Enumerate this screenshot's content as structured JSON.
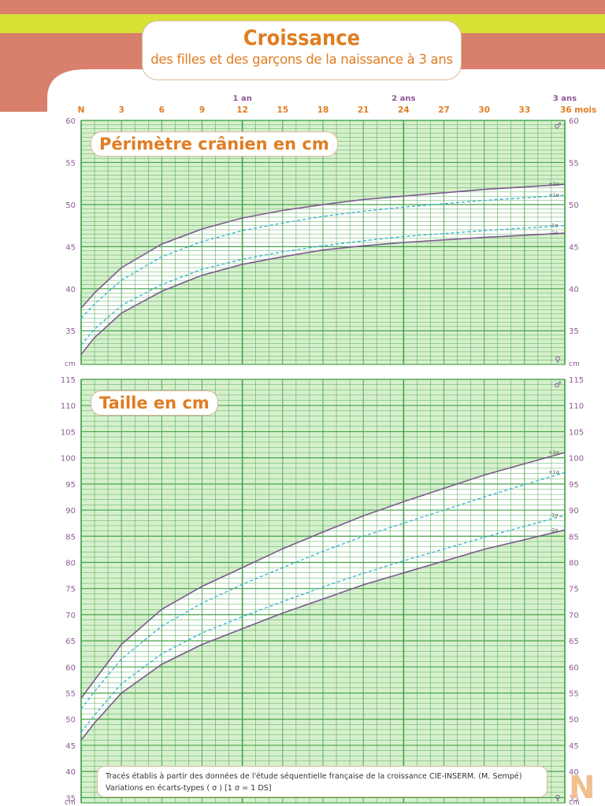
{
  "header": {
    "title": "Croissance",
    "subtitle": "des filles et des garçons de la naissance à 3 ans"
  },
  "colors": {
    "band_top": "#d8806c",
    "band_yellow": "#d7e235",
    "grid_fill": "#d6f0cd",
    "grid_line": "#46a24a",
    "boys_line": "#7b5a8c",
    "girls_line": "#2fb3cf",
    "tick_month": "#e07d22",
    "tick_value": "#8e5a96",
    "label_orange": "#e07d22"
  },
  "age_axis": {
    "month_labels": [
      "N",
      "3",
      "6",
      "9",
      "12",
      "15",
      "18",
      "21",
      "24",
      "27",
      "30",
      "33",
      "36 mois"
    ],
    "year_labels": [
      {
        "month": 12,
        "label": "1 an"
      },
      {
        "month": 24,
        "label": "2 ans"
      },
      {
        "month": 36,
        "label": "3 ans"
      }
    ]
  },
  "symbols": {
    "male": "♂",
    "female": "♀"
  },
  "chart_data": [
    {
      "type": "line",
      "title": "Périmètre crânien en cm",
      "ylabel": "cm",
      "xlim": [
        0,
        36
      ],
      "ylim": [
        31,
        60
      ],
      "y_ticks": [
        35,
        40,
        45,
        50,
        55,
        60
      ],
      "series_labels": [
        "+2σ",
        "+1σ",
        "-1σ",
        "-2σ"
      ],
      "series": [
        {
          "key": "boys_plus2",
          "style": "solid",
          "group": "male",
          "x": [
            0,
            1,
            3,
            6,
            9,
            12,
            15,
            18,
            21,
            24,
            30,
            36
          ],
          "y": [
            37.7,
            39.5,
            42.5,
            45.3,
            47.1,
            48.4,
            49.3,
            50.0,
            50.6,
            51.0,
            51.8,
            52.4
          ]
        },
        {
          "key": "girls_plus1",
          "style": "dashed",
          "group": "female",
          "x": [
            0,
            1,
            3,
            6,
            9,
            12,
            15,
            18,
            21,
            24,
            30,
            36
          ],
          "y": [
            36.5,
            38.2,
            41.0,
            43.8,
            45.6,
            46.9,
            47.8,
            48.6,
            49.2,
            49.7,
            50.5,
            51.1
          ]
        },
        {
          "key": "girls_minus1",
          "style": "dashed",
          "group": "female",
          "x": [
            0,
            1,
            3,
            6,
            9,
            12,
            15,
            18,
            21,
            24,
            30,
            36
          ],
          "y": [
            33.3,
            35.2,
            38.0,
            40.5,
            42.3,
            43.5,
            44.4,
            45.1,
            45.7,
            46.2,
            46.9,
            47.5
          ]
        },
        {
          "key": "boys_minus2",
          "style": "solid",
          "group": "male",
          "x": [
            0,
            1,
            3,
            6,
            9,
            12,
            15,
            18,
            21,
            24,
            30,
            36
          ],
          "y": [
            32.2,
            34.2,
            37.1,
            39.7,
            41.6,
            42.9,
            43.8,
            44.6,
            45.1,
            45.5,
            46.1,
            46.6
          ]
        }
      ]
    },
    {
      "type": "line",
      "title": "Taille en cm",
      "ylabel": "cm",
      "xlim": [
        0,
        36
      ],
      "ylim": [
        34,
        115
      ],
      "y_ticks": [
        35,
        40,
        45,
        50,
        55,
        60,
        65,
        70,
        75,
        80,
        85,
        90,
        95,
        100,
        105,
        110,
        115
      ],
      "series_labels": [
        "+2σ",
        "+1σ",
        "-1σ",
        "-2σ"
      ],
      "series": [
        {
          "key": "boys_plus2",
          "style": "solid",
          "group": "male",
          "x": [
            0,
            1,
            3,
            6,
            9,
            12,
            15,
            18,
            21,
            24,
            30,
            36
          ],
          "y": [
            54.0,
            57.5,
            64.3,
            71.0,
            75.4,
            79.0,
            82.6,
            85.8,
            88.9,
            91.6,
            96.7,
            101.0
          ]
        },
        {
          "key": "girls_plus1",
          "style": "dashed",
          "group": "female",
          "x": [
            0,
            1,
            3,
            6,
            9,
            12,
            15,
            18,
            21,
            24,
            30,
            36
          ],
          "y": [
            52.0,
            55.3,
            61.5,
            67.8,
            72.2,
            75.8,
            79.0,
            82.1,
            85.0,
            87.5,
            92.5,
            97.2
          ]
        },
        {
          "key": "girls_minus1",
          "style": "dashed",
          "group": "female",
          "x": [
            0,
            1,
            3,
            6,
            9,
            12,
            15,
            18,
            21,
            24,
            30,
            36
          ],
          "y": [
            47.5,
            50.8,
            56.8,
            62.5,
            66.5,
            69.6,
            72.5,
            75.3,
            77.9,
            80.3,
            84.8,
            89.0
          ]
        },
        {
          "key": "boys_minus2",
          "style": "solid",
          "group": "male",
          "x": [
            0,
            1,
            3,
            6,
            9,
            12,
            15,
            18,
            21,
            24,
            30,
            36
          ],
          "y": [
            46.0,
            49.3,
            55.0,
            60.5,
            64.3,
            67.3,
            70.3,
            73.0,
            75.7,
            78.0,
            82.5,
            86.2
          ]
        }
      ]
    }
  ],
  "footnote": {
    "line1": "Tracés établis à partir des données de l'étude séquentielle française de la croissance CIE-INSERM. (M. Sempé)",
    "line2": "Variations en écarts-types ( σ ) [1 σ = 1 DS]"
  },
  "corner_letter": "N"
}
